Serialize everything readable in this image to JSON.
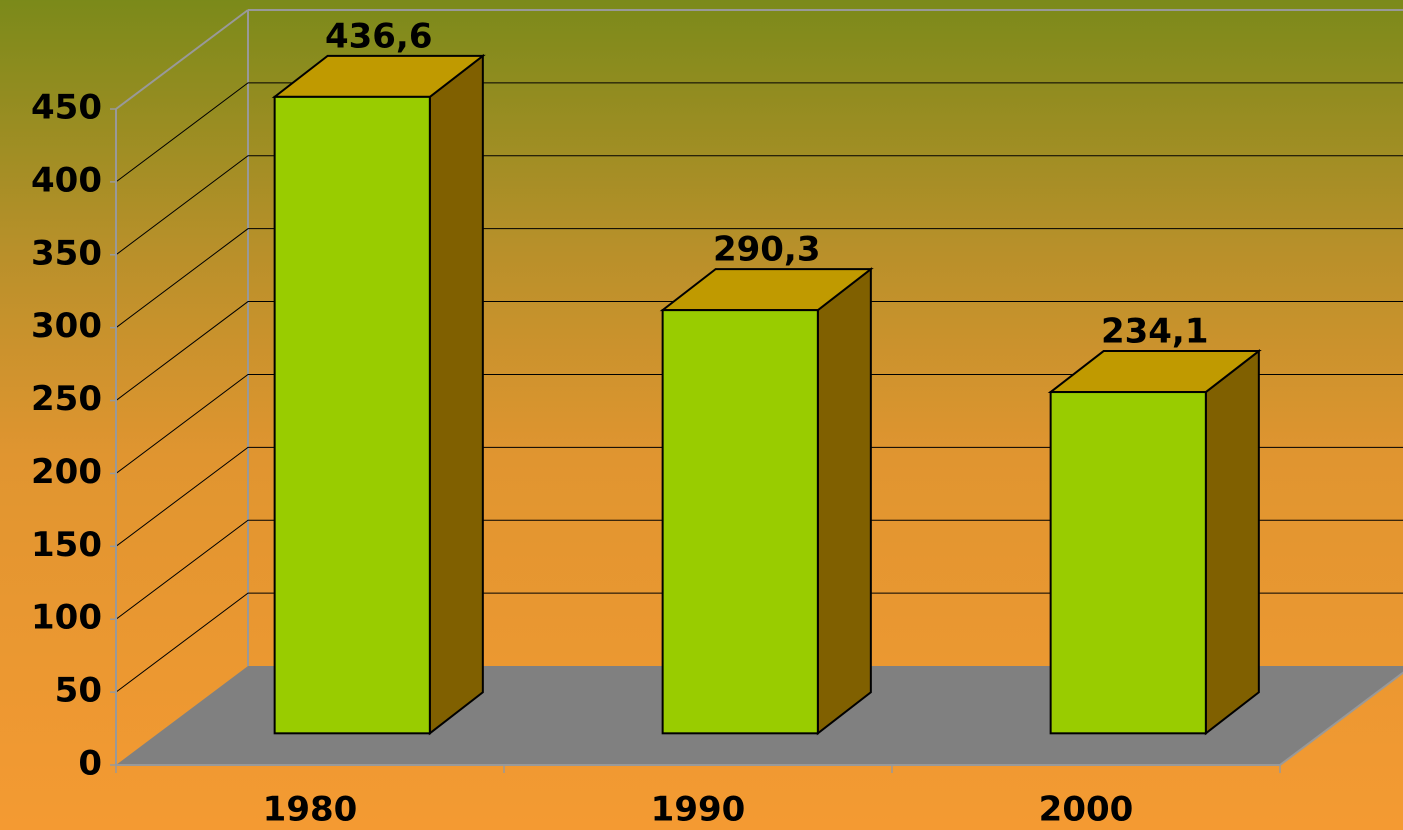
{
  "chart_data": {
    "type": "bar3d",
    "categories": [
      "1980",
      "1990",
      "2000"
    ],
    "values": [
      436.6,
      290.3,
      234.1
    ],
    "value_labels": [
      "436,6",
      "290,3",
      "234,1"
    ],
    "color": "#99cc00",
    "side_color": "#806000",
    "top_color": "#c09a00",
    "floor_color": "#808080",
    "ylim": [
      0,
      450
    ],
    "yticks": [
      0,
      50,
      100,
      150,
      200,
      250,
      300,
      350,
      400,
      450
    ],
    "grid": true
  }
}
